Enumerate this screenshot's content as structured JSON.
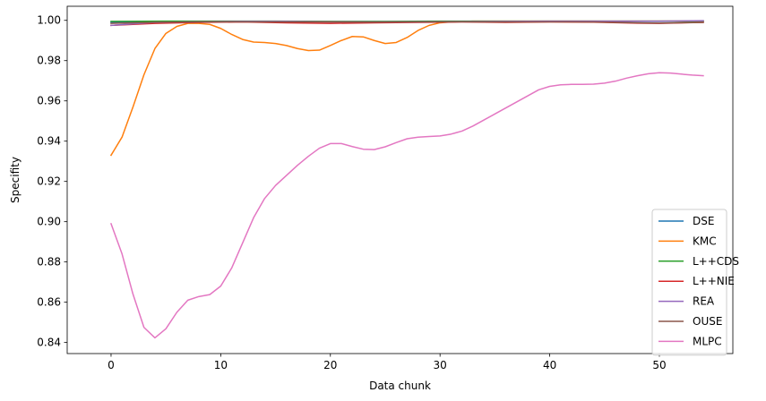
{
  "chart_data": {
    "type": "line",
    "title": "",
    "xlabel": "Data chunk",
    "ylabel": "Specifity",
    "xlim": [
      -4,
      56.7
    ],
    "ylim": [
      0.8345,
      1.007
    ],
    "xticks": [
      0,
      10,
      20,
      30,
      40,
      50
    ],
    "yticks": [
      0.84,
      0.86,
      0.88,
      0.9,
      0.92,
      0.94,
      0.96,
      0.98,
      1.0
    ],
    "ytick_labels": [
      "0.84",
      "0.86",
      "0.88",
      "0.90",
      "0.92",
      "0.94",
      "0.96",
      "0.98",
      "1.00"
    ],
    "grid": false,
    "legend_position": "lower-right",
    "series": [
      {
        "name": "DSE",
        "color": "#1f77b4",
        "x": [
          0,
          5,
          10,
          15,
          20,
          25,
          30,
          35,
          40,
          45,
          50,
          54
        ],
        "y": [
          0.999,
          0.9992,
          0.9993,
          0.9994,
          0.9993,
          0.9993,
          0.9994,
          0.9995,
          0.9995,
          0.9995,
          0.9995,
          0.9996
        ]
      },
      {
        "name": "KMC",
        "color": "#ff7f0e",
        "x": [
          0,
          1,
          2,
          3,
          4,
          5,
          6,
          7,
          8,
          9,
          10,
          11,
          12,
          13,
          14,
          15,
          16,
          17,
          18,
          19,
          20,
          21,
          22,
          23,
          24,
          25,
          26,
          27,
          28,
          29,
          30,
          31,
          32,
          33,
          34,
          35,
          40,
          45,
          50,
          54
        ],
        "y": [
          0.933,
          0.942,
          0.957,
          0.973,
          0.986,
          0.9935,
          0.997,
          0.9985,
          0.9985,
          0.998,
          0.996,
          0.993,
          0.9905,
          0.9892,
          0.989,
          0.9885,
          0.9875,
          0.986,
          0.985,
          0.9852,
          0.9875,
          0.99,
          0.992,
          0.9918,
          0.99,
          0.9885,
          0.989,
          0.9915,
          0.995,
          0.9975,
          0.9988,
          0.9992,
          0.9994,
          0.9996,
          0.9996,
          0.9996,
          0.9996,
          0.9996,
          0.9996,
          0.9996
        ]
      },
      {
        "name": "L++CDS",
        "color": "#2ca02c",
        "x": [
          0,
          5,
          10,
          15,
          20,
          25,
          30,
          35,
          40,
          45,
          50,
          54
        ],
        "y": [
          0.9995,
          0.9996,
          0.9996,
          0.9996,
          0.9995,
          0.9995,
          0.9996,
          0.9996,
          0.9996,
          0.9996,
          0.9996,
          0.9996
        ]
      },
      {
        "name": "L++NIE",
        "color": "#d62728",
        "x": [
          0,
          4,
          8,
          12,
          16,
          20,
          24,
          28,
          32,
          36,
          40,
          44,
          48,
          50,
          54
        ],
        "y": [
          0.9975,
          0.9985,
          0.999,
          0.9992,
          0.9988,
          0.9985,
          0.9988,
          0.999,
          0.9992,
          0.999,
          0.9992,
          0.9991,
          0.9986,
          0.9985,
          0.999
        ]
      },
      {
        "name": "REA",
        "color": "#9467bd",
        "x": [
          0,
          4,
          8,
          12,
          16,
          20,
          24,
          28,
          32,
          36,
          40,
          44,
          48,
          50,
          54
        ],
        "y": [
          0.9975,
          0.999,
          0.9993,
          0.9995,
          0.9995,
          0.9993,
          0.9992,
          0.9993,
          0.9994,
          0.9995,
          0.9996,
          0.9996,
          0.9996,
          0.9996,
          0.9998
        ]
      },
      {
        "name": "OUSE",
        "color": "#8c564b",
        "x": [
          0,
          4,
          8,
          12,
          16,
          20,
          24,
          28,
          32,
          36,
          40,
          44,
          48,
          50,
          54
        ],
        "y": [
          0.9985,
          0.999,
          0.9992,
          0.9993,
          0.9992,
          0.9992,
          0.9991,
          0.9992,
          0.9993,
          0.9992,
          0.9993,
          0.9992,
          0.9988,
          0.9986,
          0.999
        ]
      },
      {
        "name": "MLPC",
        "color": "#e377c2",
        "x": [
          0,
          1,
          2,
          3,
          4,
          5,
          6,
          7,
          8,
          9,
          10,
          11,
          12,
          13,
          14,
          15,
          16,
          17,
          18,
          19,
          20,
          21,
          22,
          23,
          24,
          25,
          26,
          27,
          28,
          29,
          30,
          31,
          32,
          33,
          34,
          35,
          36,
          37,
          38,
          39,
          40,
          41,
          42,
          43,
          44,
          45,
          46,
          47,
          48,
          49,
          50,
          51,
          52,
          53,
          54
        ],
        "y": [
          0.899,
          0.884,
          0.864,
          0.8475,
          0.8423,
          0.8468,
          0.855,
          0.861,
          0.8628,
          0.8638,
          0.868,
          0.877,
          0.8895,
          0.902,
          0.9115,
          0.918,
          0.923,
          0.928,
          0.9325,
          0.9365,
          0.9388,
          0.9388,
          0.9373,
          0.936,
          0.9358,
          0.9372,
          0.9393,
          0.9412,
          0.942,
          0.9423,
          0.9426,
          0.9435,
          0.945,
          0.9475,
          0.9505,
          0.9535,
          0.9565,
          0.9595,
          0.9625,
          0.9655,
          0.9672,
          0.968,
          0.9682,
          0.9682,
          0.9683,
          0.9688,
          0.9698,
          0.9713,
          0.9725,
          0.9735,
          0.974,
          0.9738,
          0.9733,
          0.9728,
          0.9725
        ]
      }
    ]
  }
}
